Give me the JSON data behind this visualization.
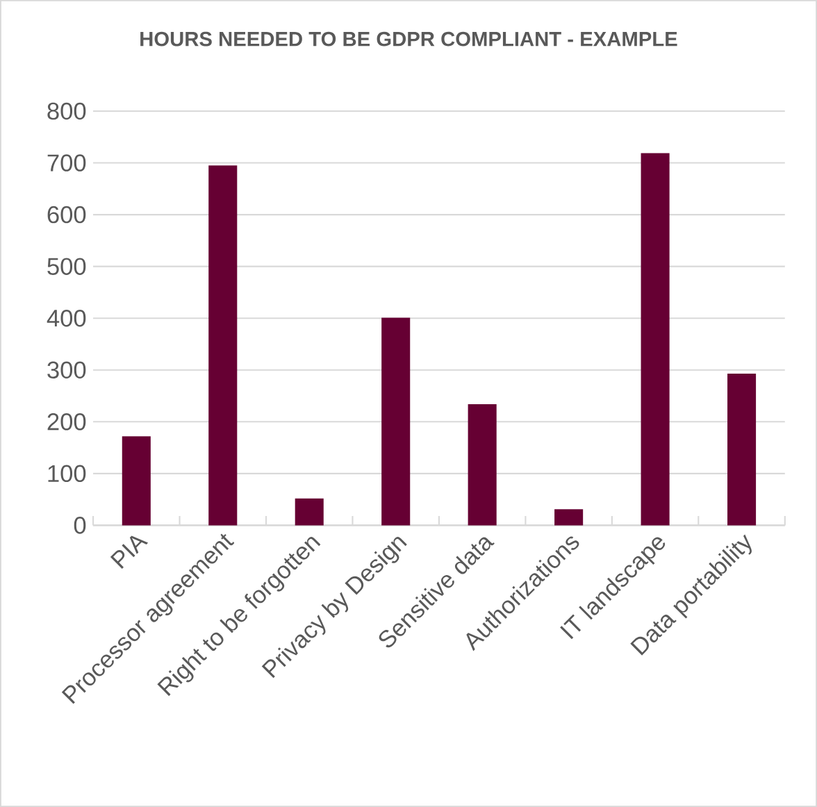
{
  "chart_data": {
    "type": "bar",
    "title": "HOURS NEEDED TO BE GDPR COMPLIANT - EXAMPLE",
    "categories": [
      "PIA",
      "Processor agreement",
      "Right to be forgotten",
      "Privacy by Design",
      "Sensitive data",
      "Authorizations",
      "IT landscape",
      "Data portability"
    ],
    "values": [
      172,
      695,
      52,
      401,
      234,
      31,
      719,
      293
    ],
    "color": "#660033",
    "ylim": [
      0,
      800
    ],
    "yticks": [
      0,
      100,
      200,
      300,
      400,
      500,
      600,
      700,
      800
    ],
    "grid": "y"
  }
}
